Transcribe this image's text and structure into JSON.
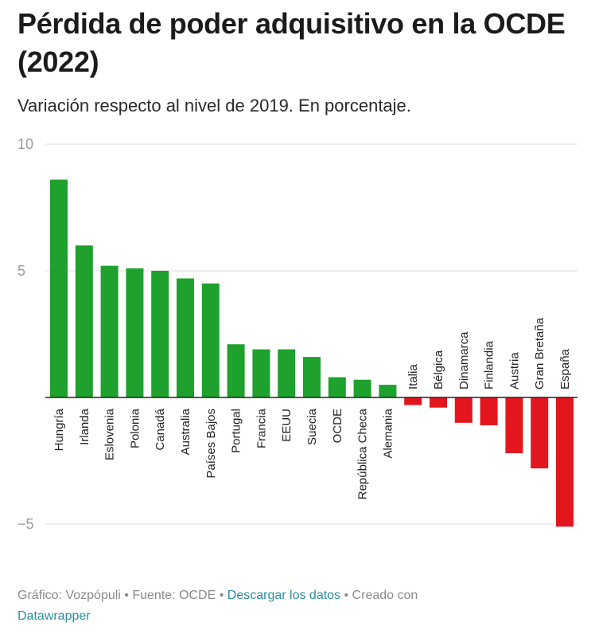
{
  "title": "Pérdida de poder adquisitivo en la OCDE (2022)",
  "subtitle": "Variación respecto al nivel de 2019. En porcentaje.",
  "footer": {
    "prefix": "Gráfico: Vozpópuli • Fuente: OCDE • ",
    "download_link": "Descargar los datos",
    "middle": " • Creado con ",
    "datawrapper_link": "Datawrapper"
  },
  "colors": {
    "positive": "#1fa12e",
    "negative": "#e3161e",
    "grid": "#dddddd",
    "link": "#2a8f9c"
  },
  "chart_data": {
    "type": "bar",
    "categories": [
      "Hungría",
      "Irlanda",
      "Eslovenia",
      "Polonia",
      "Canadá",
      "Australia",
      "Países Bajos",
      "Portugal",
      "Francia",
      "EEUU",
      "Suecia",
      "OCDE",
      "República Checa",
      "Alemania",
      "Italia",
      "Bélgica",
      "Dinamarca",
      "Finlandia",
      "Austria",
      "Gran Bretaña",
      "España"
    ],
    "values": [
      8.6,
      6.0,
      5.2,
      5.1,
      5.0,
      4.7,
      4.5,
      2.1,
      1.9,
      1.9,
      1.6,
      0.8,
      0.7,
      0.5,
      -0.3,
      -0.4,
      -1.0,
      -1.1,
      -2.2,
      -2.8,
      -5.1
    ],
    "yticks": [
      10,
      5,
      -5
    ],
    "ytick_labels": [
      "10",
      "5",
      "−5"
    ],
    "ylim": [
      -5,
      10
    ],
    "grid": true
  }
}
